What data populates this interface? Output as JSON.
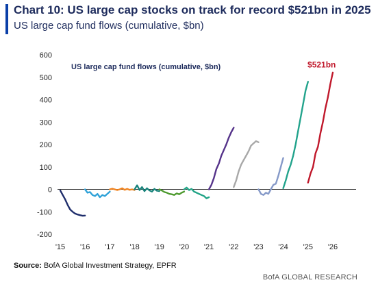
{
  "header": {
    "title": "Chart 10: US large cap stocks on track for record $521bn in 2025",
    "subtitle": "US large cap fund flows (cumulative, $bn)"
  },
  "footer": {
    "source_label": "Source:",
    "source_text": "BofA Global Investment Strategy, EPFR",
    "brand": "BofA GLOBAL RESEARCH"
  },
  "chart_data": {
    "type": "line",
    "title": "US large cap fund flows (cumulative, $bn)",
    "xlabel": "",
    "ylabel": "",
    "xlim": [
      2015,
      2026
    ],
    "ylim": [
      -200,
      600
    ],
    "x_ticks": [
      "'15",
      "'16",
      "'17",
      "'18",
      "'19",
      "'20",
      "'21",
      "'22",
      "'23",
      "'24",
      "'25",
      "'26"
    ],
    "y_ticks": [
      600,
      500,
      400,
      300,
      200,
      100,
      0,
      -100,
      -200
    ],
    "grid": false,
    "legend": "none",
    "annotation": {
      "text": "$521bn",
      "x": 2025.55,
      "y": 555,
      "color": "#c0182b"
    },
    "series": [
      {
        "year": 2015,
        "color": "#1e2d6b",
        "x": [
          2015.0,
          2015.1,
          2015.2,
          2015.3,
          2015.4,
          2015.5,
          2015.6,
          2015.7,
          2015.8,
          2015.9,
          2016.0
        ],
        "y": [
          -5,
          -25,
          -45,
          -70,
          -90,
          -100,
          -108,
          -112,
          -115,
          -118,
          -117
        ]
      },
      {
        "year": 2016,
        "color": "#2fa2d8",
        "x": [
          2016.0,
          2016.1,
          2016.2,
          2016.3,
          2016.4,
          2016.5,
          2016.6,
          2016.7,
          2016.8,
          2016.9,
          2017.0
        ],
        "y": [
          0,
          -15,
          -12,
          -25,
          -30,
          -20,
          -35,
          -25,
          -30,
          -20,
          -10
        ]
      },
      {
        "year": 2017,
        "color": "#f0831f",
        "x": [
          2017.0,
          2017.1,
          2017.2,
          2017.3,
          2017.4,
          2017.5,
          2017.6,
          2017.7,
          2017.8,
          2017.9,
          2018.0
        ],
        "y": [
          0,
          3,
          0,
          -3,
          0,
          5,
          -2,
          2,
          -2,
          0,
          -3
        ]
      },
      {
        "year": 2018,
        "color": "#17827a",
        "x": [
          2018.0,
          2018.1,
          2018.2,
          2018.3,
          2018.4,
          2018.5,
          2018.6,
          2018.7,
          2018.8,
          2018.9,
          2019.0
        ],
        "y": [
          0,
          18,
          -3,
          10,
          -8,
          5,
          -5,
          -10,
          2,
          -6,
          -8
        ]
      },
      {
        "year": 2019,
        "color": "#4e9a2f",
        "x": [
          2019.0,
          2019.1,
          2019.2,
          2019.3,
          2019.4,
          2019.5,
          2019.6,
          2019.7,
          2019.8,
          2019.9,
          2020.0
        ],
        "y": [
          0,
          -5,
          -12,
          -15,
          -20,
          -22,
          -25,
          -18,
          -22,
          -15,
          -10
        ]
      },
      {
        "year": 2020,
        "color": "#23a487",
        "x": [
          2020.0,
          2020.1,
          2020.2,
          2020.3,
          2020.4,
          2020.5,
          2020.6,
          2020.7,
          2020.8,
          2020.9,
          2021.0
        ],
        "y": [
          0,
          8,
          -3,
          2,
          -10,
          -15,
          -20,
          -25,
          -30,
          -40,
          -35
        ]
      },
      {
        "year": 2021,
        "color": "#55338a",
        "x": [
          2021.0,
          2021.1,
          2021.2,
          2021.3,
          2021.4,
          2021.5,
          2021.6,
          2021.7,
          2021.8,
          2021.9,
          2022.0
        ],
        "y": [
          0,
          20,
          50,
          90,
          115,
          150,
          175,
          200,
          230,
          255,
          275
        ]
      },
      {
        "year": 2022,
        "color": "#a8a8a8",
        "x": [
          2022.0,
          2022.1,
          2022.2,
          2022.3,
          2022.4,
          2022.5,
          2022.6,
          2022.7,
          2022.8,
          2022.9,
          2023.0
        ],
        "y": [
          10,
          40,
          80,
          110,
          130,
          150,
          170,
          195,
          205,
          215,
          210
        ]
      },
      {
        "year": 2023,
        "color": "#8599c8",
        "x": [
          2023.0,
          2023.1,
          2023.2,
          2023.3,
          2023.4,
          2023.5,
          2023.6,
          2023.7,
          2023.8,
          2023.9,
          2024.0
        ],
        "y": [
          0,
          -20,
          -25,
          -15,
          -20,
          0,
          20,
          25,
          60,
          100,
          140
        ]
      },
      {
        "year": 2024,
        "color": "#22a38c",
        "x": [
          2024.0,
          2024.1,
          2024.2,
          2024.3,
          2024.4,
          2024.5,
          2024.6,
          2024.7,
          2024.8,
          2024.9,
          2025.0
        ],
        "y": [
          5,
          40,
          80,
          110,
          150,
          200,
          260,
          320,
          380,
          440,
          480
        ]
      },
      {
        "year": 2025,
        "color": "#c0182b",
        "x": [
          2025.0,
          2025.1,
          2025.2,
          2025.3,
          2025.4,
          2025.5,
          2025.6,
          2025.7,
          2025.8,
          2025.9,
          2026.0
        ],
        "y": [
          30,
          70,
          100,
          160,
          190,
          250,
          300,
          360,
          410,
          470,
          521
        ]
      }
    ]
  }
}
